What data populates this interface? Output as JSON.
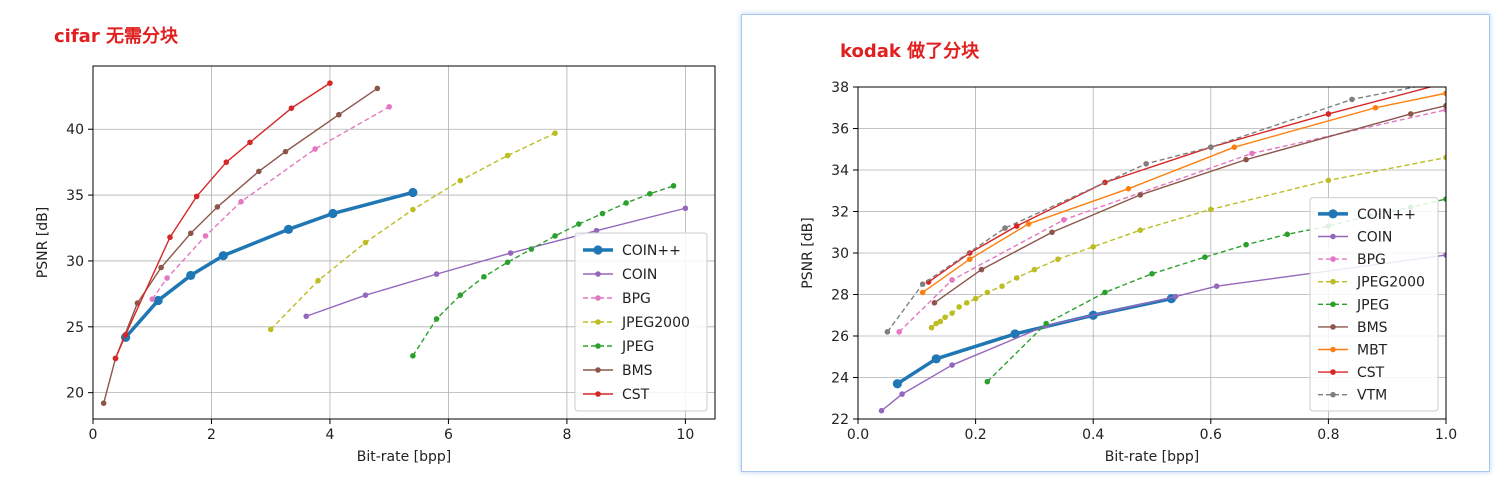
{
  "captions": {
    "left": "cifar 无需分块",
    "right": "kodak 做了分块"
  },
  "chart_data": [
    {
      "type": "line",
      "xlabel": "Bit-rate [bpp]",
      "ylabel": "PSNR [dB]",
      "xlim": [
        0,
        10.5
      ],
      "ylim": [
        18,
        44.8
      ],
      "xticks": [
        0,
        2,
        4,
        6,
        8,
        10
      ],
      "yticks": [
        20,
        25,
        30,
        35,
        40
      ],
      "grid": true,
      "legend_position": "lower-right",
      "series": [
        {
          "name": "COIN++",
          "color": "#1f77b4",
          "style": "solid",
          "bold": true,
          "points": [
            [
              0.55,
              24.2
            ],
            [
              1.1,
              27.0
            ],
            [
              1.65,
              28.9
            ],
            [
              2.2,
              30.4
            ],
            [
              3.3,
              32.4
            ],
            [
              4.05,
              33.6
            ],
            [
              5.4,
              35.2
            ]
          ]
        },
        {
          "name": "COIN",
          "color": "#9467bd",
          "style": "solid",
          "points": [
            [
              3.6,
              25.8
            ],
            [
              4.6,
              27.4
            ],
            [
              5.8,
              29.0
            ],
            [
              7.05,
              30.6
            ],
            [
              8.5,
              32.3
            ],
            [
              10.0,
              34.0
            ]
          ]
        },
        {
          "name": "BPG",
          "color": "#e377c2",
          "style": "dashed",
          "points": [
            [
              1.0,
              27.1
            ],
            [
              1.25,
              28.7
            ],
            [
              1.9,
              31.9
            ],
            [
              2.5,
              34.5
            ],
            [
              3.75,
              38.5
            ],
            [
              5.0,
              41.7
            ]
          ]
        },
        {
          "name": "JPEG2000",
          "color": "#bcbd22",
          "style": "dashed",
          "points": [
            [
              3.0,
              24.8
            ],
            [
              3.8,
              28.5
            ],
            [
              4.6,
              31.4
            ],
            [
              5.4,
              33.9
            ],
            [
              6.2,
              36.1
            ],
            [
              7.0,
              38.0
            ],
            [
              7.8,
              39.7
            ]
          ]
        },
        {
          "name": "JPEG",
          "color": "#2ca02c",
          "style": "dashed",
          "points": [
            [
              5.4,
              22.8
            ],
            [
              5.8,
              25.6
            ],
            [
              6.2,
              27.4
            ],
            [
              6.6,
              28.8
            ],
            [
              7.0,
              29.9
            ],
            [
              7.4,
              30.9
            ],
            [
              7.8,
              31.9
            ],
            [
              8.2,
              32.8
            ],
            [
              8.6,
              33.6
            ],
            [
              9.0,
              34.4
            ],
            [
              9.4,
              35.1
            ],
            [
              9.8,
              35.7
            ]
          ]
        },
        {
          "name": "BMS",
          "color": "#8c564b",
          "style": "solid",
          "points": [
            [
              0.18,
              19.2
            ],
            [
              0.38,
              22.6
            ],
            [
              0.75,
              26.8
            ],
            [
              1.15,
              29.5
            ],
            [
              1.65,
              32.1
            ],
            [
              2.1,
              34.1
            ],
            [
              2.8,
              36.8
            ],
            [
              3.25,
              38.3
            ],
            [
              4.15,
              41.1
            ],
            [
              4.8,
              43.1
            ]
          ]
        },
        {
          "name": "CST",
          "color": "#d62728",
          "style": "solid",
          "points": [
            [
              0.38,
              22.6
            ],
            [
              0.55,
              24.4
            ],
            [
              1.3,
              31.8
            ],
            [
              1.75,
              34.9
            ],
            [
              2.25,
              37.5
            ],
            [
              2.65,
              39.0
            ],
            [
              3.35,
              41.6
            ],
            [
              4.0,
              43.5
            ]
          ]
        }
      ]
    },
    {
      "type": "line",
      "xlabel": "Bit-rate [bpp]",
      "ylabel": "PSNR [dB]",
      "xlim": [
        0.0,
        1.0
      ],
      "ylim": [
        22,
        38
      ],
      "xticks": [
        0.0,
        0.2,
        0.4,
        0.6,
        0.8,
        1.0
      ],
      "yticks": [
        22,
        24,
        26,
        28,
        30,
        32,
        34,
        36,
        38
      ],
      "grid": true,
      "legend_position": "lower-right",
      "series": [
        {
          "name": "COIN++",
          "color": "#1f77b4",
          "style": "solid",
          "bold": true,
          "points": [
            [
              0.067,
              23.7
            ],
            [
              0.133,
              24.9
            ],
            [
              0.267,
              26.1
            ],
            [
              0.4,
              27.0
            ],
            [
              0.533,
              27.8
            ]
          ]
        },
        {
          "name": "COIN",
          "color": "#9467bd",
          "style": "solid",
          "points": [
            [
              0.04,
              22.4
            ],
            [
              0.075,
              23.2
            ],
            [
              0.16,
              24.6
            ],
            [
              0.32,
              26.5
            ],
            [
              0.54,
              27.9
            ],
            [
              0.61,
              28.4
            ],
            [
              1.0,
              29.9
            ]
          ]
        },
        {
          "name": "BPG",
          "color": "#e377c2",
          "style": "dashed",
          "points": [
            [
              0.07,
              26.2
            ],
            [
              0.16,
              28.7
            ],
            [
              0.35,
              31.6
            ],
            [
              0.67,
              34.8
            ],
            [
              1.0,
              36.9
            ]
          ]
        },
        {
          "name": "JPEG2000",
          "color": "#bcbd22",
          "style": "dashed",
          "points": [
            [
              0.125,
              26.4
            ],
            [
              0.133,
              26.6
            ],
            [
              0.14,
              26.7
            ],
            [
              0.148,
              26.9
            ],
            [
              0.16,
              27.1
            ],
            [
              0.172,
              27.4
            ],
            [
              0.185,
              27.6
            ],
            [
              0.2,
              27.8
            ],
            [
              0.22,
              28.1
            ],
            [
              0.245,
              28.4
            ],
            [
              0.27,
              28.8
            ],
            [
              0.3,
              29.2
            ],
            [
              0.34,
              29.7
            ],
            [
              0.4,
              30.3
            ],
            [
              0.48,
              31.1
            ],
            [
              0.6,
              32.1
            ],
            [
              0.8,
              33.5
            ],
            [
              1.0,
              34.6
            ]
          ]
        },
        {
          "name": "JPEG",
          "color": "#2ca02c",
          "style": "dashed",
          "points": [
            [
              0.22,
              23.8
            ],
            [
              0.32,
              26.6
            ],
            [
              0.42,
              28.1
            ],
            [
              0.5,
              29.0
            ],
            [
              0.59,
              29.8
            ],
            [
              0.66,
              30.4
            ],
            [
              0.73,
              30.9
            ],
            [
              0.8,
              31.3
            ],
            [
              0.87,
              31.8
            ],
            [
              0.94,
              32.2
            ],
            [
              1.0,
              32.6
            ]
          ]
        },
        {
          "name": "BMS",
          "color": "#8c564b",
          "style": "solid",
          "points": [
            [
              0.13,
              27.6
            ],
            [
              0.21,
              29.2
            ],
            [
              0.33,
              31.0
            ],
            [
              0.48,
              32.8
            ],
            [
              0.66,
              34.5
            ],
            [
              0.94,
              36.7
            ],
            [
              1.0,
              37.1
            ]
          ]
        },
        {
          "name": "MBT",
          "color": "#ff7f0e",
          "style": "solid",
          "points": [
            [
              0.11,
              28.1
            ],
            [
              0.19,
              29.7
            ],
            [
              0.29,
              31.4
            ],
            [
              0.46,
              33.1
            ],
            [
              0.64,
              35.1
            ],
            [
              0.88,
              37.0
            ],
            [
              1.0,
              37.7
            ]
          ]
        },
        {
          "name": "CST",
          "color": "#d62728",
          "style": "solid",
          "points": [
            [
              0.12,
              28.6
            ],
            [
              0.19,
              30.0
            ],
            [
              0.27,
              31.3
            ],
            [
              0.42,
              33.4
            ],
            [
              0.6,
              35.1
            ],
            [
              0.8,
              36.7
            ],
            [
              1.0,
              38.2
            ]
          ]
        },
        {
          "name": "VTM",
          "color": "#7f7f7f",
          "style": "dashed",
          "points": [
            [
              0.05,
              26.2
            ],
            [
              0.11,
              28.5
            ],
            [
              0.25,
              31.2
            ],
            [
              0.49,
              34.3
            ],
            [
              0.6,
              35.1
            ],
            [
              0.84,
              37.4
            ],
            [
              1.0,
              38.3
            ]
          ]
        }
      ]
    }
  ]
}
